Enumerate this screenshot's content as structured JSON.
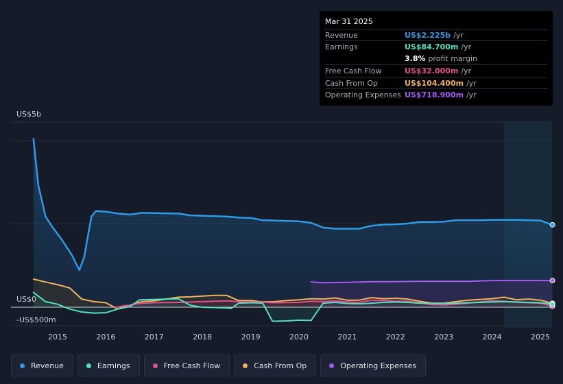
{
  "tooltip": {
    "date": "Mar 31 2025",
    "rows": [
      {
        "key": "Revenue",
        "value": "US$2.225b",
        "unit": "/yr",
        "color": "#2e9be8"
      },
      {
        "key": "Earnings",
        "value": "US$84.700m",
        "unit": "/yr",
        "color": "#52e0c4"
      },
      {
        "key": "",
        "value": "3.8%",
        "unit": "profit margin",
        "color": "#ffffff"
      },
      {
        "key": "Free Cash Flow",
        "value": "US$32.000m",
        "unit": "/yr",
        "color": "#e0518a"
      },
      {
        "key": "Cash From Op",
        "value": "US$104.400m",
        "unit": "/yr",
        "color": "#f0b35f"
      },
      {
        "key": "Operating Expenses",
        "value": "US$718.900m",
        "unit": "/yr",
        "color": "#a45cf0"
      }
    ]
  },
  "legend": [
    {
      "label": "Revenue",
      "color": "#2e9be8"
    },
    {
      "label": "Earnings",
      "color": "#52e0c4"
    },
    {
      "label": "Free Cash Flow",
      "color": "#e0518a"
    },
    {
      "label": "Cash From Op",
      "color": "#f0b35f"
    },
    {
      "label": "Operating Expenses",
      "color": "#a45cf0"
    }
  ],
  "chart_data": {
    "type": "line",
    "y_tick_labels": [
      "US$5b",
      "US$0",
      "-US$500m"
    ],
    "y_ticks": [
      5000,
      0,
      -500
    ],
    "ylim": [
      -500,
      5000
    ],
    "xlim": [
      2014.45,
      2025.25
    ],
    "x_tick_labels": [
      "2015",
      "2016",
      "2017",
      "2018",
      "2019",
      "2020",
      "2021",
      "2022",
      "2023",
      "2024",
      "2025"
    ],
    "x_ticks": [
      2015,
      2016,
      2017,
      2018,
      2019,
      2020,
      2021,
      2022,
      2023,
      2024,
      2025
    ],
    "units": "US$ millions",
    "highlight_from": 2024.25,
    "series": [
      {
        "name": "Revenue",
        "color": "#2e9be8",
        "points": [
          [
            2014.5,
            4550
          ],
          [
            2014.6,
            3300
          ],
          [
            2014.75,
            2450
          ],
          [
            2014.9,
            2150
          ],
          [
            2015.1,
            1800
          ],
          [
            2015.3,
            1400
          ],
          [
            2015.45,
            1000
          ],
          [
            2015.55,
            1350
          ],
          [
            2015.7,
            2450
          ],
          [
            2015.8,
            2600
          ],
          [
            2016.0,
            2580
          ],
          [
            2016.25,
            2530
          ],
          [
            2016.5,
            2500
          ],
          [
            2016.75,
            2550
          ],
          [
            2017.0,
            2540
          ],
          [
            2017.5,
            2530
          ],
          [
            2017.75,
            2480
          ],
          [
            2018.0,
            2470
          ],
          [
            2018.5,
            2450
          ],
          [
            2018.75,
            2420
          ],
          [
            2019.0,
            2410
          ],
          [
            2019.25,
            2350
          ],
          [
            2019.5,
            2340
          ],
          [
            2019.75,
            2330
          ],
          [
            2020.0,
            2320
          ],
          [
            2020.25,
            2280
          ],
          [
            2020.5,
            2150
          ],
          [
            2020.75,
            2120
          ],
          [
            2021.0,
            2120
          ],
          [
            2021.25,
            2120
          ],
          [
            2021.5,
            2200
          ],
          [
            2021.75,
            2230
          ],
          [
            2022.0,
            2240
          ],
          [
            2022.25,
            2260
          ],
          [
            2022.5,
            2300
          ],
          [
            2022.75,
            2300
          ],
          [
            2023.0,
            2310
          ],
          [
            2023.25,
            2350
          ],
          [
            2023.5,
            2350
          ],
          [
            2023.75,
            2350
          ],
          [
            2024.0,
            2360
          ],
          [
            2024.25,
            2360
          ],
          [
            2024.5,
            2360
          ],
          [
            2024.75,
            2350
          ],
          [
            2025.0,
            2340
          ],
          [
            2025.25,
            2225
          ]
        ]
      },
      {
        "name": "Earnings",
        "color": "#52e0c4",
        "points": [
          [
            2014.5,
            400
          ],
          [
            2014.75,
            150
          ],
          [
            2015.0,
            80
          ],
          [
            2015.25,
            -50
          ],
          [
            2015.5,
            -130
          ],
          [
            2015.75,
            -160
          ],
          [
            2016.0,
            -150
          ],
          [
            2016.25,
            -50
          ],
          [
            2016.5,
            20
          ],
          [
            2016.7,
            200
          ],
          [
            2017.0,
            210
          ],
          [
            2017.25,
            220
          ],
          [
            2017.5,
            230
          ],
          [
            2017.75,
            50
          ],
          [
            2018.0,
            0
          ],
          [
            2018.25,
            -10
          ],
          [
            2018.5,
            -20
          ],
          [
            2018.6,
            -30
          ],
          [
            2018.75,
            110
          ],
          [
            2019.0,
            120
          ],
          [
            2019.25,
            110
          ],
          [
            2019.45,
            -380
          ],
          [
            2019.75,
            -370
          ],
          [
            2020.0,
            -350
          ],
          [
            2020.25,
            -360
          ],
          [
            2020.5,
            110
          ],
          [
            2020.75,
            130
          ],
          [
            2021.0,
            100
          ],
          [
            2021.25,
            90
          ],
          [
            2021.5,
            110
          ],
          [
            2021.75,
            130
          ],
          [
            2022.0,
            140
          ],
          [
            2022.25,
            130
          ],
          [
            2022.5,
            110
          ],
          [
            2022.75,
            100
          ],
          [
            2023.0,
            100
          ],
          [
            2023.25,
            110
          ],
          [
            2023.5,
            120
          ],
          [
            2023.75,
            130
          ],
          [
            2024.0,
            140
          ],
          [
            2024.25,
            150
          ],
          [
            2024.5,
            140
          ],
          [
            2024.75,
            130
          ],
          [
            2025.0,
            120
          ],
          [
            2025.25,
            85
          ]
        ]
      },
      {
        "name": "Free Cash Flow",
        "color": "#e0518a",
        "points": [
          [
            2016.2,
            0
          ],
          [
            2016.5,
            60
          ],
          [
            2016.7,
            100
          ],
          [
            2017.0,
            120
          ],
          [
            2017.5,
            130
          ],
          [
            2018.0,
            150
          ],
          [
            2018.5,
            170
          ],
          [
            2018.75,
            150
          ],
          [
            2019.0,
            140
          ],
          [
            2019.5,
            120
          ],
          [
            2020.0,
            130
          ],
          [
            2020.25,
            160
          ],
          [
            2020.5,
            150
          ],
          [
            2020.75,
            170
          ],
          [
            2021.0,
            140
          ],
          [
            2021.25,
            130
          ],
          [
            2021.5,
            190
          ],
          [
            2021.75,
            180
          ],
          [
            2022.0,
            160
          ],
          [
            2022.25,
            160
          ],
          [
            2022.5,
            120
          ],
          [
            2022.75,
            70
          ],
          [
            2023.0,
            60
          ],
          [
            2023.25,
            80
          ],
          [
            2023.5,
            110
          ],
          [
            2023.75,
            140
          ],
          [
            2024.0,
            170
          ],
          [
            2024.25,
            160
          ],
          [
            2024.5,
            130
          ],
          [
            2024.75,
            120
          ],
          [
            2025.0,
            110
          ],
          [
            2025.25,
            32
          ]
        ]
      },
      {
        "name": "Cash From Op",
        "color": "#f0b35f",
        "points": [
          [
            2014.5,
            760
          ],
          [
            2014.75,
            680
          ],
          [
            2015.0,
            610
          ],
          [
            2015.25,
            520
          ],
          [
            2015.5,
            220
          ],
          [
            2015.75,
            150
          ],
          [
            2016.0,
            120
          ],
          [
            2016.25,
            -50
          ],
          [
            2016.5,
            60
          ],
          [
            2016.75,
            150
          ],
          [
            2017.0,
            170
          ],
          [
            2017.25,
            220
          ],
          [
            2017.5,
            270
          ],
          [
            2017.75,
            280
          ],
          [
            2018.0,
            300
          ],
          [
            2018.25,
            320
          ],
          [
            2018.5,
            320
          ],
          [
            2018.75,
            180
          ],
          [
            2019.0,
            180
          ],
          [
            2019.25,
            140
          ],
          [
            2019.5,
            150
          ],
          [
            2019.75,
            180
          ],
          [
            2020.0,
            200
          ],
          [
            2020.25,
            230
          ],
          [
            2020.5,
            220
          ],
          [
            2020.75,
            250
          ],
          [
            2021.0,
            190
          ],
          [
            2021.25,
            190
          ],
          [
            2021.5,
            260
          ],
          [
            2021.75,
            230
          ],
          [
            2022.0,
            240
          ],
          [
            2022.25,
            220
          ],
          [
            2022.5,
            160
          ],
          [
            2022.75,
            110
          ],
          [
            2023.0,
            110
          ],
          [
            2023.25,
            150
          ],
          [
            2023.5,
            190
          ],
          [
            2023.75,
            210
          ],
          [
            2024.0,
            230
          ],
          [
            2024.25,
            270
          ],
          [
            2024.5,
            200
          ],
          [
            2024.75,
            220
          ],
          [
            2025.0,
            190
          ],
          [
            2025.25,
            104
          ]
        ]
      },
      {
        "name": "Operating Expenses",
        "color": "#a45cf0",
        "points": [
          [
            2020.25,
            680
          ],
          [
            2020.5,
            660
          ],
          [
            2021.0,
            670
          ],
          [
            2021.5,
            690
          ],
          [
            2022.0,
            690
          ],
          [
            2022.5,
            700
          ],
          [
            2023.0,
            700
          ],
          [
            2023.5,
            700
          ],
          [
            2024.0,
            720
          ],
          [
            2024.5,
            720
          ],
          [
            2025.0,
            720
          ],
          [
            2025.25,
            719
          ]
        ]
      }
    ]
  }
}
